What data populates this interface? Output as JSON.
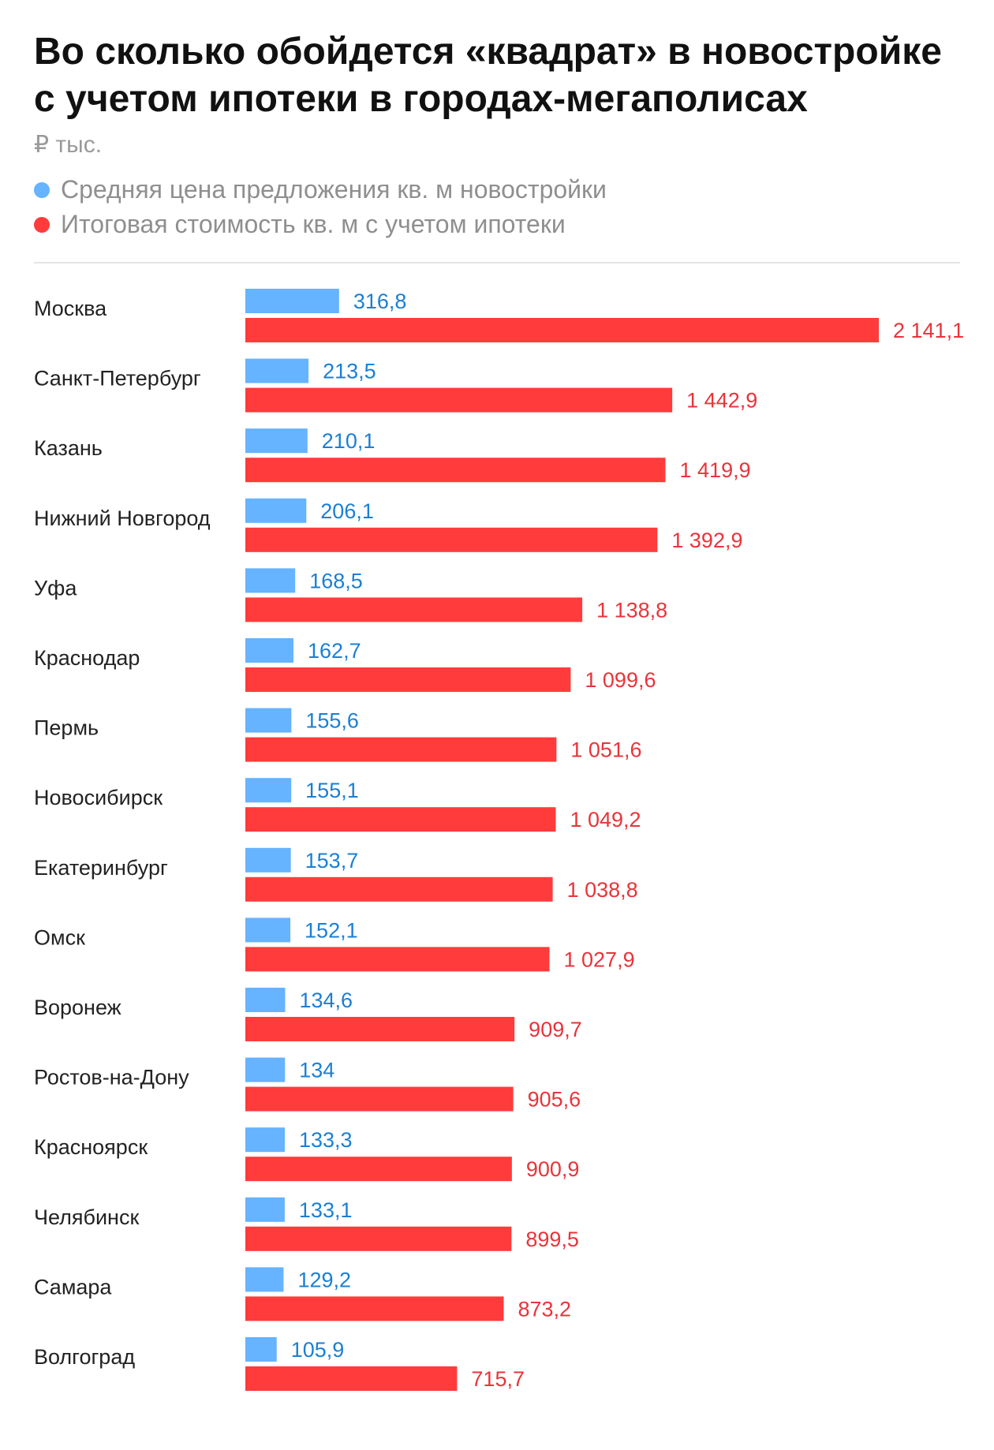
{
  "chart_data": {
    "type": "bar",
    "orientation": "horizontal",
    "title": "Во сколько обойдется «квадрат» в новостройке с учетом ипотеки в городах-мегаполисах",
    "subtitle": "₽ тыс.",
    "colors": {
      "avg": "#66b3ff",
      "total": "#ff3b3b",
      "avg_text": "#1a7fd4",
      "total_text": "#e8343a"
    },
    "categories": [
      "Москва",
      "Санкт-Петербург",
      "Казань",
      "Нижний Новгород",
      "Уфа",
      "Краснодар",
      "Пермь",
      "Новосибирск",
      "Екатеринбург",
      "Омск",
      "Воронеж",
      "Ростов-на-Дону",
      "Красноярск",
      "Челябинск",
      "Самара",
      "Волгоград"
    ],
    "series": [
      {
        "name": "Средняя цена предложения кв. м новостройки",
        "values": [
          316.8,
          213.5,
          210.1,
          206.1,
          168.5,
          162.7,
          155.6,
          155.1,
          153.7,
          152.1,
          134.6,
          134,
          133.3,
          133.1,
          129.2,
          105.9
        ],
        "labels": [
          "316,8",
          "213,5",
          "210,1",
          "206,1",
          "168,5",
          "162,7",
          "155,6",
          "155,1",
          "153,7",
          "152,1",
          "134,6",
          "134",
          "133,3",
          "133,1",
          "129,2",
          "105,9"
        ]
      },
      {
        "name": "Итоговая стоимость кв. м с учетом ипотеки",
        "values": [
          2141.1,
          1442.9,
          1419.9,
          1392.9,
          1138.8,
          1099.6,
          1051.6,
          1049.2,
          1038.8,
          1027.9,
          909.7,
          905.6,
          900.9,
          899.5,
          873.2,
          715.7
        ],
        "labels": [
          "2 141,1",
          "1 442,9",
          "1 419,9",
          "1 392,9",
          "1 138,8",
          "1 099,6",
          "1 051,6",
          "1 049,2",
          "1 038,8",
          "1 027,9",
          "909,7",
          "905,6",
          "900,9",
          "899,5",
          "873,2",
          "715,7"
        ]
      }
    ],
    "xlim": [
      0,
      2141.1
    ],
    "grid": false,
    "legend_position": "top-left"
  }
}
